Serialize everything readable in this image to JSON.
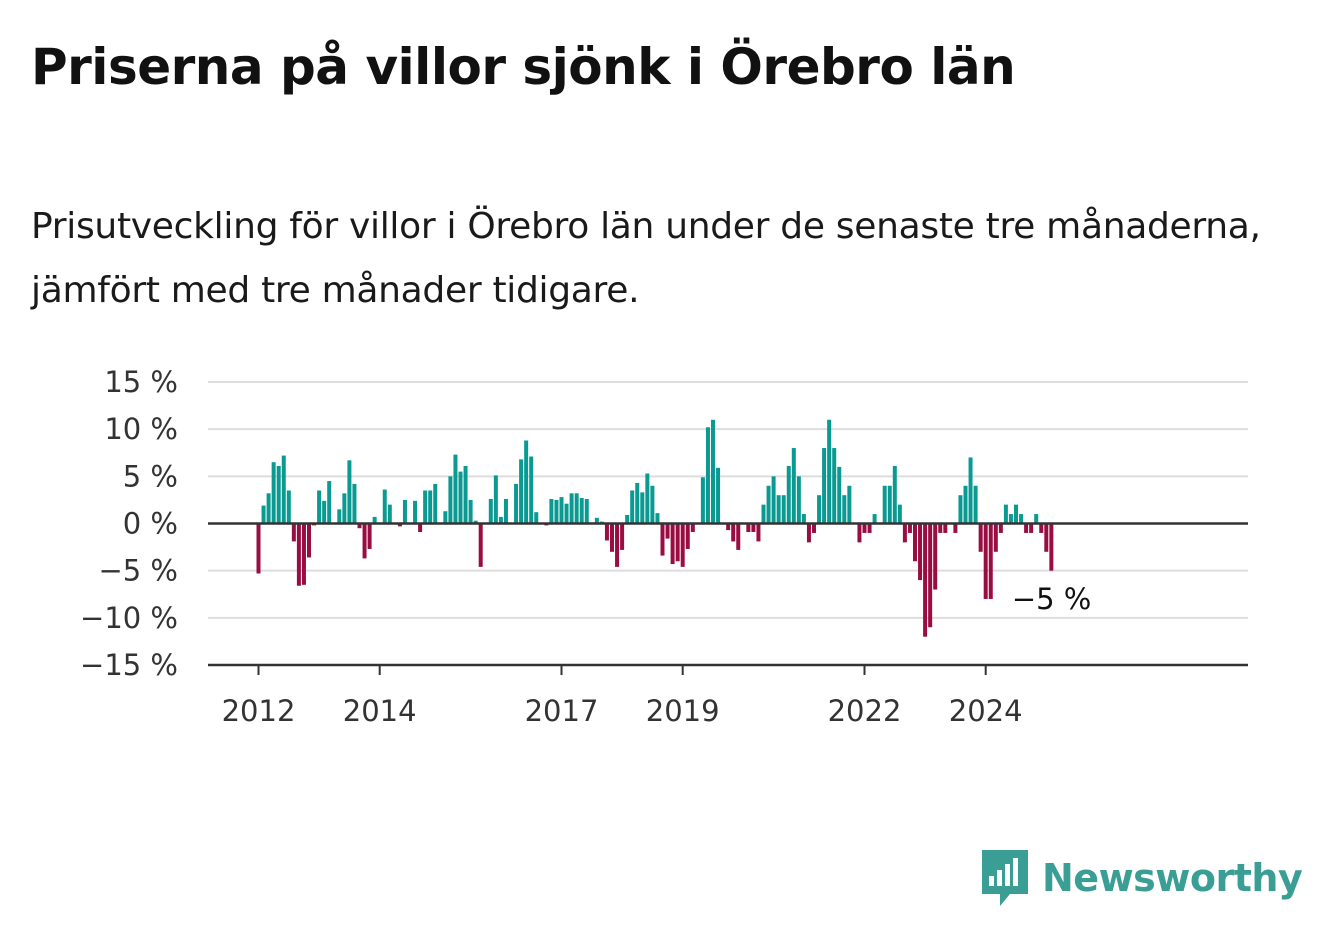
{
  "header": {
    "title": "Priserna på villor sjönk i Örebro län",
    "subtitle": "Prisutveckling för villor i Örebro län under de senaste tre månaderna, jämfört med tre månader tidigare."
  },
  "brand": {
    "name": "Newsworthy",
    "icon": "newsworthy-logo-icon",
    "color": "#3a9e95"
  },
  "colors": {
    "positive": "#0a9a92",
    "negative": "#990d43",
    "grid": "#dddddd",
    "axis": "#333333"
  },
  "chart_data": {
    "type": "bar",
    "title": "Priserna på villor sjönk i Örebro län",
    "subtitle": "Prisutveckling för villor i Örebro län under de senaste tre månaderna, jämfört med tre månader tidigare.",
    "xlabel": "",
    "ylabel": "",
    "ylim": [
      -15,
      15
    ],
    "y_ticks": [
      {
        "value": 15,
        "label": "15 %"
      },
      {
        "value": 10,
        "label": "10 %"
      },
      {
        "value": 5,
        "label": "5 %"
      },
      {
        "value": 0,
        "label": "0 %"
      },
      {
        "value": -5,
        "label": "−5 %"
      },
      {
        "value": -10,
        "label": "−10 %"
      },
      {
        "value": -15,
        "label": "−15 %"
      }
    ],
    "x_ticks": [
      {
        "date": "2012-01",
        "label": "2012"
      },
      {
        "date": "2014-01",
        "label": "2014"
      },
      {
        "date": "2017-01",
        "label": "2017"
      },
      {
        "date": "2019-01",
        "label": "2019"
      },
      {
        "date": "2022-01",
        "label": "2022"
      },
      {
        "date": "2024-01",
        "label": "2024"
      }
    ],
    "grid": true,
    "legend": "none",
    "annotation": {
      "date": "2025-02",
      "label": "−5 %"
    },
    "series": [
      {
        "values": [
          {
            "date": "2012-01",
            "value": -5.3
          },
          {
            "date": "2012-02",
            "value": 1.9
          },
          {
            "date": "2012-03",
            "value": 3.2
          },
          {
            "date": "2012-04",
            "value": 6.5
          },
          {
            "date": "2012-05",
            "value": 6.1
          },
          {
            "date": "2012-06",
            "value": 7.2
          },
          {
            "date": "2012-07",
            "value": 3.5
          },
          {
            "date": "2012-08",
            "value": -1.9
          },
          {
            "date": "2012-09",
            "value": -6.6
          },
          {
            "date": "2012-10",
            "value": -6.5
          },
          {
            "date": "2012-11",
            "value": -3.6
          },
          {
            "date": "2012-12",
            "value": -0.2
          },
          {
            "date": "2013-01",
            "value": 3.5
          },
          {
            "date": "2013-02",
            "value": 2.4
          },
          {
            "date": "2013-03",
            "value": 4.5
          },
          {
            "date": "2013-04",
            "value": 0.0
          },
          {
            "date": "2013-05",
            "value": 1.5
          },
          {
            "date": "2013-06",
            "value": 3.2
          },
          {
            "date": "2013-07",
            "value": 6.7
          },
          {
            "date": "2013-08",
            "value": 4.2
          },
          {
            "date": "2013-09",
            "value": -0.5
          },
          {
            "date": "2013-10",
            "value": -3.7
          },
          {
            "date": "2013-11",
            "value": -2.7
          },
          {
            "date": "2013-12",
            "value": 0.7
          },
          {
            "date": "2014-01",
            "value": 0.0
          },
          {
            "date": "2014-02",
            "value": 3.6
          },
          {
            "date": "2014-03",
            "value": 2.0
          },
          {
            "date": "2014-04",
            "value": 0.0
          },
          {
            "date": "2014-05",
            "value": -0.3
          },
          {
            "date": "2014-06",
            "value": 2.5
          },
          {
            "date": "2014-07",
            "value": 0.0
          },
          {
            "date": "2014-08",
            "value": 2.4
          },
          {
            "date": "2014-09",
            "value": -0.9
          },
          {
            "date": "2014-10",
            "value": 3.5
          },
          {
            "date": "2014-11",
            "value": 3.5
          },
          {
            "date": "2014-12",
            "value": 4.2
          },
          {
            "date": "2015-01",
            "value": 0.0
          },
          {
            "date": "2015-02",
            "value": 1.3
          },
          {
            "date": "2015-03",
            "value": 5.0
          },
          {
            "date": "2015-04",
            "value": 7.3
          },
          {
            "date": "2015-05",
            "value": 5.5
          },
          {
            "date": "2015-06",
            "value": 6.1
          },
          {
            "date": "2015-07",
            "value": 2.5
          },
          {
            "date": "2015-08",
            "value": 0.3
          },
          {
            "date": "2015-09",
            "value": -4.6
          },
          {
            "date": "2015-10",
            "value": 0.0
          },
          {
            "date": "2015-11",
            "value": 2.6
          },
          {
            "date": "2015-12",
            "value": 5.1
          },
          {
            "date": "2016-01",
            "value": 0.7
          },
          {
            "date": "2016-02",
            "value": 2.6
          },
          {
            "date": "2016-03",
            "value": 0.0
          },
          {
            "date": "2016-04",
            "value": 4.2
          },
          {
            "date": "2016-05",
            "value": 6.8
          },
          {
            "date": "2016-06",
            "value": 8.8
          },
          {
            "date": "2016-07",
            "value": 7.1
          },
          {
            "date": "2016-08",
            "value": 1.2
          },
          {
            "date": "2016-09",
            "value": 0.0
          },
          {
            "date": "2016-10",
            "value": -0.2
          },
          {
            "date": "2016-11",
            "value": 2.6
          },
          {
            "date": "2016-12",
            "value": 2.5
          },
          {
            "date": "2017-01",
            "value": 2.8
          },
          {
            "date": "2017-02",
            "value": 2.1
          },
          {
            "date": "2017-03",
            "value": 3.2
          },
          {
            "date": "2017-04",
            "value": 3.2
          },
          {
            "date": "2017-05",
            "value": 2.7
          },
          {
            "date": "2017-06",
            "value": 2.6
          },
          {
            "date": "2017-07",
            "value": 0.0
          },
          {
            "date": "2017-08",
            "value": 0.6
          },
          {
            "date": "2017-09",
            "value": 0.2
          },
          {
            "date": "2017-10",
            "value": -1.8
          },
          {
            "date": "2017-11",
            "value": -3.0
          },
          {
            "date": "2017-12",
            "value": -4.6
          },
          {
            "date": "2018-01",
            "value": -2.8
          },
          {
            "date": "2018-02",
            "value": 0.9
          },
          {
            "date": "2018-03",
            "value": 3.5
          },
          {
            "date": "2018-04",
            "value": 4.3
          },
          {
            "date": "2018-05",
            "value": 3.3
          },
          {
            "date": "2018-06",
            "value": 5.3
          },
          {
            "date": "2018-07",
            "value": 4.0
          },
          {
            "date": "2018-08",
            "value": 1.1
          },
          {
            "date": "2018-09",
            "value": -3.4
          },
          {
            "date": "2018-10",
            "value": -1.6
          },
          {
            "date": "2018-11",
            "value": -4.3
          },
          {
            "date": "2018-12",
            "value": -4.0
          },
          {
            "date": "2019-01",
            "value": -4.6
          },
          {
            "date": "2019-02",
            "value": -2.7
          },
          {
            "date": "2019-03",
            "value": -0.9
          },
          {
            "date": "2019-04",
            "value": 0.0
          },
          {
            "date": "2019-05",
            "value": 4.9
          },
          {
            "date": "2019-06",
            "value": 10.2
          },
          {
            "date": "2019-07",
            "value": 11.0
          },
          {
            "date": "2019-08",
            "value": 5.9
          },
          {
            "date": "2019-09",
            "value": 0.0
          },
          {
            "date": "2019-10",
            "value": -0.7
          },
          {
            "date": "2019-11",
            "value": -1.9
          },
          {
            "date": "2019-12",
            "value": -2.8
          },
          {
            "date": "2020-01",
            "value": 0.0
          },
          {
            "date": "2020-02",
            "value": -0.9
          },
          {
            "date": "2020-03",
            "value": -0.9
          },
          {
            "date": "2020-04",
            "value": -1.9
          },
          {
            "date": "2020-05",
            "value": 2.0
          },
          {
            "date": "2020-06",
            "value": 4.0
          },
          {
            "date": "2020-07",
            "value": 5.0
          },
          {
            "date": "2020-08",
            "value": 3.0
          },
          {
            "date": "2020-09",
            "value": 3.0
          },
          {
            "date": "2020-10",
            "value": 6.1
          },
          {
            "date": "2020-11",
            "value": 8.0
          },
          {
            "date": "2020-12",
            "value": 5.0
          },
          {
            "date": "2021-01",
            "value": 1.0
          },
          {
            "date": "2021-02",
            "value": -2.0
          },
          {
            "date": "2021-03",
            "value": -1.0
          },
          {
            "date": "2021-04",
            "value": 3.0
          },
          {
            "date": "2021-05",
            "value": 8.0
          },
          {
            "date": "2021-06",
            "value": 11.0
          },
          {
            "date": "2021-07",
            "value": 8.0
          },
          {
            "date": "2021-08",
            "value": 6.0
          },
          {
            "date": "2021-09",
            "value": 3.0
          },
          {
            "date": "2021-10",
            "value": 4.0
          },
          {
            "date": "2021-11",
            "value": 0.0
          },
          {
            "date": "2021-12",
            "value": -2.0
          },
          {
            "date": "2022-01",
            "value": -1.0
          },
          {
            "date": "2022-02",
            "value": -1.0
          },
          {
            "date": "2022-03",
            "value": 1.0
          },
          {
            "date": "2022-04",
            "value": 0.0
          },
          {
            "date": "2022-05",
            "value": 4.0
          },
          {
            "date": "2022-06",
            "value": 4.0
          },
          {
            "date": "2022-07",
            "value": 6.1
          },
          {
            "date": "2022-08",
            "value": 2.0
          },
          {
            "date": "2022-09",
            "value": -2.0
          },
          {
            "date": "2022-10",
            "value": -1.0
          },
          {
            "date": "2022-11",
            "value": -4.0
          },
          {
            "date": "2022-12",
            "value": -6.0
          },
          {
            "date": "2023-01",
            "value": -12.0
          },
          {
            "date": "2023-02",
            "value": -11.0
          },
          {
            "date": "2023-03",
            "value": -7.0
          },
          {
            "date": "2023-04",
            "value": -1.0
          },
          {
            "date": "2023-05",
            "value": -1.0
          },
          {
            "date": "2023-06",
            "value": 0.0
          },
          {
            "date": "2023-07",
            "value": -1.0
          },
          {
            "date": "2023-08",
            "value": 3.0
          },
          {
            "date": "2023-09",
            "value": 4.0
          },
          {
            "date": "2023-10",
            "value": 7.0
          },
          {
            "date": "2023-11",
            "value": 4.0
          },
          {
            "date": "2023-12",
            "value": -3.0
          },
          {
            "date": "2024-01",
            "value": -8.0
          },
          {
            "date": "2024-02",
            "value": -8.0
          },
          {
            "date": "2024-03",
            "value": -3.0
          },
          {
            "date": "2024-04",
            "value": -1.0
          },
          {
            "date": "2024-05",
            "value": 2.0
          },
          {
            "date": "2024-06",
            "value": 1.0
          },
          {
            "date": "2024-07",
            "value": 2.0
          },
          {
            "date": "2024-08",
            "value": 1.0
          },
          {
            "date": "2024-09",
            "value": -1.0
          },
          {
            "date": "2024-10",
            "value": -1.0
          },
          {
            "date": "2024-11",
            "value": 1.0
          },
          {
            "date": "2024-12",
            "value": -1.0
          },
          {
            "date": "2025-01",
            "value": -3.0
          },
          {
            "date": "2025-02",
            "value": -5.0
          }
        ]
      }
    ]
  }
}
